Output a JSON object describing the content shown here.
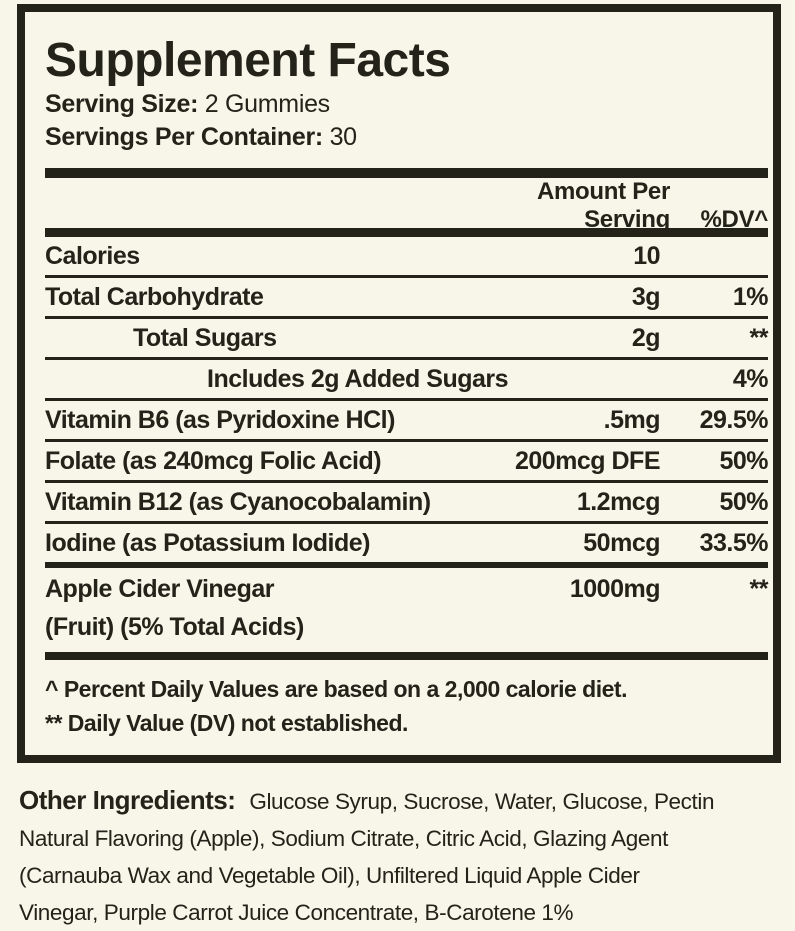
{
  "colors": {
    "background": "#f8f6e9",
    "ink": "#24231a"
  },
  "label": {
    "title": "Supplement Facts",
    "serving_size": {
      "label": "Serving Size:",
      "value": "2 Gummies"
    },
    "servings_per_container": {
      "label": "Servings Per Container:",
      "value": "30"
    },
    "column_headers": {
      "amount": "Amount Per Serving",
      "dv": "%DV^"
    },
    "rows": [
      {
        "name": "Calories",
        "amount": "10",
        "dv": ""
      },
      {
        "name": "Total Carbohydrate",
        "amount": "3g",
        "dv": "1%"
      },
      {
        "name": "Total Sugars",
        "amount": "2g",
        "dv": "**"
      },
      {
        "name": "Includes 2g Added Sugars",
        "amount": "",
        "dv": "4%"
      },
      {
        "name": "Vitamin B6 (as Pyridoxine HCl)",
        "amount": ".5mg",
        "dv": "29.5%"
      },
      {
        "name": "Folate (as 240mcg Folic Acid)",
        "amount": "200mcg DFE",
        "dv": "50%"
      },
      {
        "name": "Vitamin B12 (as Cyanocobalamin)",
        "amount": "1.2mcg",
        "dv": "50%"
      },
      {
        "name": "Iodine (as Potassium Iodide)",
        "amount": "50mcg",
        "dv": "33.5%"
      },
      {
        "name": "Apple Cider Vinegar",
        "name_line2": "(Fruit) (5% Total Acids)",
        "amount": "1000mg",
        "dv": "**"
      }
    ],
    "footnotes": [
      "^ Percent Daily Values are based on a 2,000 calorie diet.",
      "** Daily Value (DV) not established."
    ]
  },
  "other_ingredients": {
    "label": "Other Ingredients:",
    "lines": [
      "Glucose Syrup, Sucrose, Water, Glucose, Pectin",
      "Natural Flavoring (Apple), Sodium Citrate, Citric Acid, Glazing Agent",
      "(Carnauba Wax and Vegetable Oil), Unfiltered Liquid Apple Cider",
      "Vinegar, Purple Carrot Juice Concentrate, B-Carotene 1%"
    ]
  }
}
